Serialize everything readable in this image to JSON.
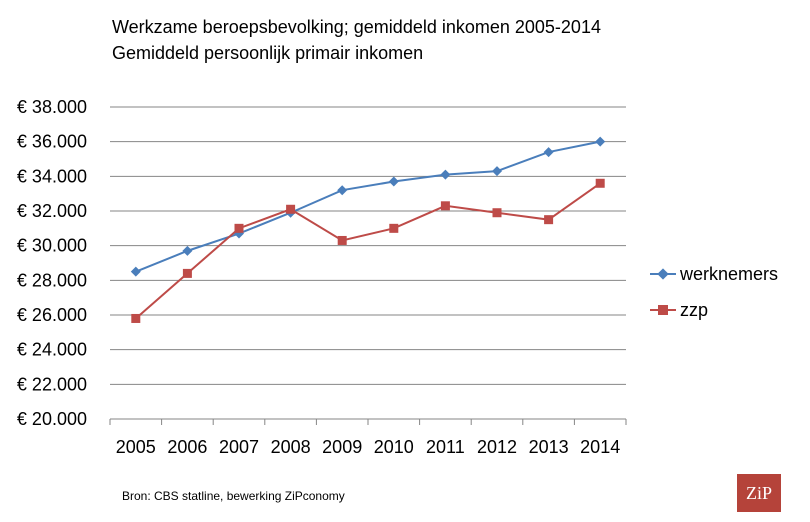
{
  "colors": {
    "werknemers": "#4a7ebb",
    "zzp": "#be4b48",
    "grid": "#868686",
    "logo_bg": "#b5433a"
  },
  "chart_data": {
    "type": "line",
    "title": "Werkzame beroepsbevolking; gemiddeld inkomen 2005-2014",
    "subtitle": "Gemiddeld persoonlijk primair inkomen",
    "categories": [
      "2005",
      "2006",
      "2007",
      "2008",
      "2009",
      "2010",
      "2011",
      "2012",
      "2013",
      "2014"
    ],
    "series": [
      {
        "name": "werknemers",
        "marker": "diamond",
        "color": "#4a7ebb",
        "values": [
          28500,
          29700,
          30700,
          31900,
          33200,
          33700,
          34100,
          34300,
          35400,
          36000
        ]
      },
      {
        "name": "zzp",
        "marker": "square",
        "color": "#be4b48",
        "values": [
          25800,
          28400,
          31000,
          32100,
          30300,
          31000,
          32300,
          31900,
          31500,
          33600
        ]
      }
    ],
    "ylim": [
      20000,
      38000
    ],
    "yticks": [
      20000,
      22000,
      24000,
      26000,
      28000,
      30000,
      32000,
      34000,
      36000,
      38000
    ],
    "ytick_labels": [
      "€ 20.000",
      "€ 22.000",
      "€ 24.000",
      "€ 26.000",
      "€ 28.000",
      "€ 30.000",
      "€ 32.000",
      "€ 34.000",
      "€ 36.000",
      "€ 38.000"
    ],
    "grid": "horizontal",
    "legend_position": "right"
  },
  "source": "Bron: CBS statline, bewerking ZiPconomy",
  "logo_text": "ZiP"
}
